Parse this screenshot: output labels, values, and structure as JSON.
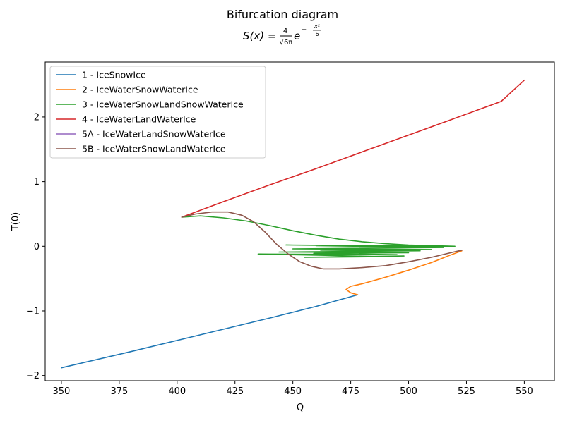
{
  "chart_data": {
    "type": "line",
    "title": "Bifurcation diagram",
    "subtitle": {
      "lhs": "S(x) =",
      "num": "4",
      "den": "√6π",
      "base": "e",
      "exp_sign": "−",
      "exp_num": "x²",
      "exp_den": "6"
    },
    "xlabel": "Q",
    "ylabel": "T(0)",
    "xlim": [
      343,
      563
    ],
    "ylim": [
      -2.08,
      2.85
    ],
    "xticks": [
      350,
      375,
      400,
      425,
      450,
      475,
      500,
      525,
      550
    ],
    "xtick_labels": [
      "350",
      "375",
      "400",
      "425",
      "450",
      "475",
      "500",
      "525",
      "550"
    ],
    "yticks": [
      -2,
      -1,
      0,
      1,
      2
    ],
    "ytick_labels": [
      "−2",
      "−1",
      "0",
      "1",
      "2"
    ],
    "grid": false,
    "legend_position": "top-left",
    "series": [
      {
        "name": "1 - IceSnowIce",
        "color": "#1f77b4",
        "points": [
          [
            350,
            -1.88
          ],
          [
            380,
            -1.63
          ],
          [
            410,
            -1.37
          ],
          [
            440,
            -1.11
          ],
          [
            460,
            -0.93
          ],
          [
            478,
            -0.75
          ]
        ]
      },
      {
        "name": "2 - IceWaterSnowWaterIce",
        "color": "#ff7f0e",
        "points": [
          [
            478,
            -0.75
          ],
          [
            475,
            -0.72
          ],
          [
            473,
            -0.67
          ],
          [
            475,
            -0.62
          ],
          [
            480,
            -0.58
          ],
          [
            490,
            -0.48
          ],
          [
            500,
            -0.37
          ],
          [
            510,
            -0.25
          ],
          [
            517,
            -0.15
          ],
          [
            523,
            -0.07
          ]
        ]
      },
      {
        "name": "3 - IceWaterSnowLandSnowWaterIce",
        "color": "#2ca02c",
        "points": [
          [
            402,
            0.45
          ],
          [
            410,
            0.47
          ],
          [
            420,
            0.44
          ],
          [
            430,
            0.39
          ],
          [
            440,
            0.32
          ],
          [
            450,
            0.24
          ],
          [
            460,
            0.17
          ],
          [
            470,
            0.11
          ],
          [
            480,
            0.07
          ],
          [
            490,
            0.04
          ],
          [
            500,
            0.02
          ],
          [
            510,
            0.01
          ],
          [
            520,
            0.0
          ],
          [
            447,
            0.02
          ],
          [
            520,
            -0.01
          ],
          [
            460,
            0.01
          ],
          [
            515,
            -0.02
          ],
          [
            450,
            -0.04
          ],
          [
            510,
            -0.05
          ],
          [
            462,
            -0.06
          ],
          [
            505,
            -0.07
          ],
          [
            444,
            -0.09
          ],
          [
            500,
            -0.1
          ],
          [
            459,
            -0.11
          ],
          [
            495,
            -0.13
          ],
          [
            435,
            -0.12
          ],
          [
            490,
            -0.16
          ],
          [
            455,
            -0.17
          ],
          [
            498,
            -0.15
          ]
        ]
      },
      {
        "name": "4 - IceWaterLandWaterIce",
        "color": "#d62728",
        "points": [
          [
            402,
            0.45
          ],
          [
            420,
            0.69
          ],
          [
            440,
            0.95
          ],
          [
            460,
            1.2
          ],
          [
            480,
            1.46
          ],
          [
            500,
            1.72
          ],
          [
            520,
            1.98
          ],
          [
            540,
            2.24
          ],
          [
            550,
            2.57
          ]
        ]
      },
      {
        "name": "5A - IceWaterLandSnowWaterIce",
        "color": "#9467bd",
        "points": []
      },
      {
        "name": "5B - IceWaterSnowLandWaterIce",
        "color": "#8c564b",
        "points": [
          [
            402,
            0.45
          ],
          [
            408,
            0.5
          ],
          [
            415,
            0.53
          ],
          [
            422,
            0.53
          ],
          [
            428,
            0.48
          ],
          [
            433,
            0.38
          ],
          [
            438,
            0.22
          ],
          [
            443,
            0.03
          ],
          [
            448,
            -0.12
          ],
          [
            453,
            -0.24
          ],
          [
            458,
            -0.31
          ],
          [
            463,
            -0.35
          ],
          [
            470,
            -0.35
          ],
          [
            480,
            -0.33
          ],
          [
            490,
            -0.3
          ],
          [
            500,
            -0.24
          ],
          [
            510,
            -0.17
          ],
          [
            517,
            -0.11
          ],
          [
            523,
            -0.06
          ]
        ]
      }
    ]
  }
}
